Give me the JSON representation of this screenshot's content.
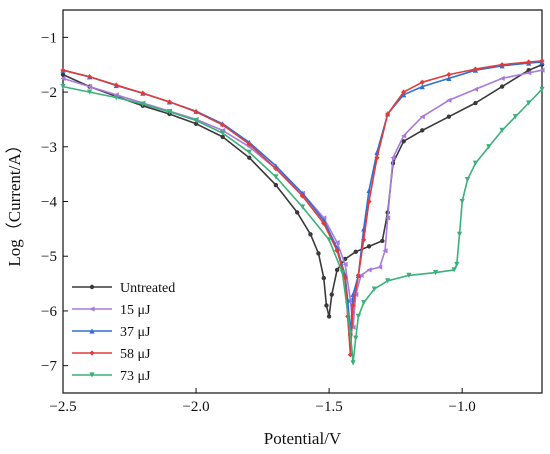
{
  "chart_data": {
    "type": "line",
    "title": "",
    "xlabel": "Potential/V",
    "ylabel": "Log（Current/A）",
    "xlim": [
      -2.5,
      -0.7
    ],
    "ylim": [
      -7.5,
      -0.5
    ],
    "xticks": [
      -2.5,
      -2.0,
      -1.5,
      -1.0
    ],
    "xtick_labels": [
      "−2.5",
      "−2.0",
      "−1.5",
      "−1.0"
    ],
    "yticks": [
      -7,
      -6,
      -5,
      -4,
      -3,
      -2,
      -1
    ],
    "ytick_labels": [
      "−7",
      "−6",
      "−5",
      "−4",
      "−3",
      "−2",
      "−1"
    ],
    "grid": false,
    "legend_position": "bottom-left",
    "series": [
      {
        "name": "Untreated",
        "color": "#3a3a3a",
        "marker": "circle",
        "x": [
          -2.5,
          -2.4,
          -2.3,
          -2.2,
          -2.1,
          -2.0,
          -1.9,
          -1.8,
          -1.7,
          -1.62,
          -1.57,
          -1.54,
          -1.52,
          -1.51,
          -1.5,
          -1.49,
          -1.47,
          -1.44,
          -1.4,
          -1.35,
          -1.3,
          -1.28,
          -1.26,
          -1.22,
          -1.15,
          -1.05,
          -0.95,
          -0.85,
          -0.75,
          -0.7
        ],
        "y": [
          -1.68,
          -1.9,
          -2.08,
          -2.25,
          -2.4,
          -2.58,
          -2.82,
          -3.2,
          -3.7,
          -4.2,
          -4.6,
          -4.95,
          -5.4,
          -5.9,
          -6.1,
          -5.7,
          -5.25,
          -5.05,
          -4.92,
          -4.82,
          -4.72,
          -4.2,
          -3.3,
          -2.9,
          -2.7,
          -2.45,
          -2.2,
          -1.9,
          -1.6,
          -1.5
        ]
      },
      {
        "name": "15 μJ",
        "color": "#a87adb",
        "marker": "triangle-left",
        "x": [
          -2.5,
          -2.4,
          -2.3,
          -2.2,
          -2.1,
          -2.0,
          -1.9,
          -1.8,
          -1.7,
          -1.6,
          -1.52,
          -1.47,
          -1.44,
          -1.42,
          -1.41,
          -1.4,
          -1.38,
          -1.35,
          -1.31,
          -1.29,
          -1.28,
          -1.26,
          -1.22,
          -1.15,
          -1.05,
          -0.95,
          -0.85,
          -0.75,
          -0.7
        ],
        "y": [
          -1.75,
          -1.9,
          -2.05,
          -2.2,
          -2.35,
          -2.5,
          -2.7,
          -3.0,
          -3.4,
          -3.85,
          -4.3,
          -4.75,
          -5.15,
          -5.8,
          -6.3,
          -5.7,
          -5.35,
          -5.25,
          -5.2,
          -4.9,
          -4.3,
          -3.2,
          -2.8,
          -2.45,
          -2.15,
          -1.95,
          -1.75,
          -1.65,
          -1.6
        ]
      },
      {
        "name": "37 μJ",
        "color": "#2f6fd6",
        "marker": "triangle-up",
        "x": [
          -2.5,
          -2.4,
          -2.3,
          -2.2,
          -2.1,
          -2.0,
          -1.9,
          -1.8,
          -1.7,
          -1.6,
          -1.52,
          -1.47,
          -1.44,
          -1.43,
          -1.42,
          -1.41,
          -1.39,
          -1.37,
          -1.35,
          -1.32,
          -1.28,
          -1.22,
          -1.15,
          -1.05,
          -0.95,
          -0.85,
          -0.75,
          -0.7
        ],
        "y": [
          -1.6,
          -1.72,
          -1.88,
          -2.02,
          -2.18,
          -2.35,
          -2.58,
          -2.92,
          -3.35,
          -3.85,
          -4.35,
          -4.85,
          -5.35,
          -5.8,
          -6.4,
          -5.7,
          -5.35,
          -4.5,
          -3.8,
          -3.1,
          -2.4,
          -2.05,
          -1.9,
          -1.75,
          -1.6,
          -1.52,
          -1.47,
          -1.45
        ]
      },
      {
        "name": "58 μJ",
        "color": "#e03c3c",
        "marker": "diamond",
        "x": [
          -2.5,
          -2.4,
          -2.3,
          -2.2,
          -2.1,
          -2.0,
          -1.9,
          -1.8,
          -1.7,
          -1.6,
          -1.52,
          -1.47,
          -1.44,
          -1.43,
          -1.42,
          -1.41,
          -1.39,
          -1.37,
          -1.35,
          -1.32,
          -1.28,
          -1.22,
          -1.15,
          -1.05,
          -0.95,
          -0.85,
          -0.75,
          -0.7
        ],
        "y": [
          -1.6,
          -1.72,
          -1.87,
          -2.02,
          -2.18,
          -2.36,
          -2.6,
          -2.95,
          -3.4,
          -3.9,
          -4.4,
          -4.9,
          -5.4,
          -6.1,
          -6.8,
          -5.9,
          -5.35,
          -4.7,
          -4.0,
          -3.2,
          -2.4,
          -2.0,
          -1.82,
          -1.68,
          -1.58,
          -1.5,
          -1.45,
          -1.43
        ]
      },
      {
        "name": "73 μJ",
        "color": "#3bb07a",
        "marker": "triangle-down",
        "x": [
          -2.5,
          -2.4,
          -2.3,
          -2.2,
          -2.1,
          -2.0,
          -1.9,
          -1.8,
          -1.7,
          -1.6,
          -1.5,
          -1.45,
          -1.42,
          -1.41,
          -1.4,
          -1.39,
          -1.37,
          -1.33,
          -1.28,
          -1.2,
          -1.1,
          -1.03,
          -1.02,
          -1.01,
          -1.0,
          -0.98,
          -0.95,
          -0.9,
          -0.85,
          -0.8,
          -0.75,
          -0.7
        ],
        "y": [
          -1.9,
          -2.0,
          -2.1,
          -2.22,
          -2.36,
          -2.52,
          -2.75,
          -3.1,
          -3.55,
          -4.1,
          -4.7,
          -5.3,
          -6.4,
          -6.95,
          -6.5,
          -6.1,
          -5.85,
          -5.6,
          -5.45,
          -5.35,
          -5.3,
          -5.25,
          -5.15,
          -4.6,
          -4.0,
          -3.6,
          -3.3,
          -3.0,
          -2.7,
          -2.45,
          -2.2,
          -1.95
        ]
      }
    ]
  }
}
